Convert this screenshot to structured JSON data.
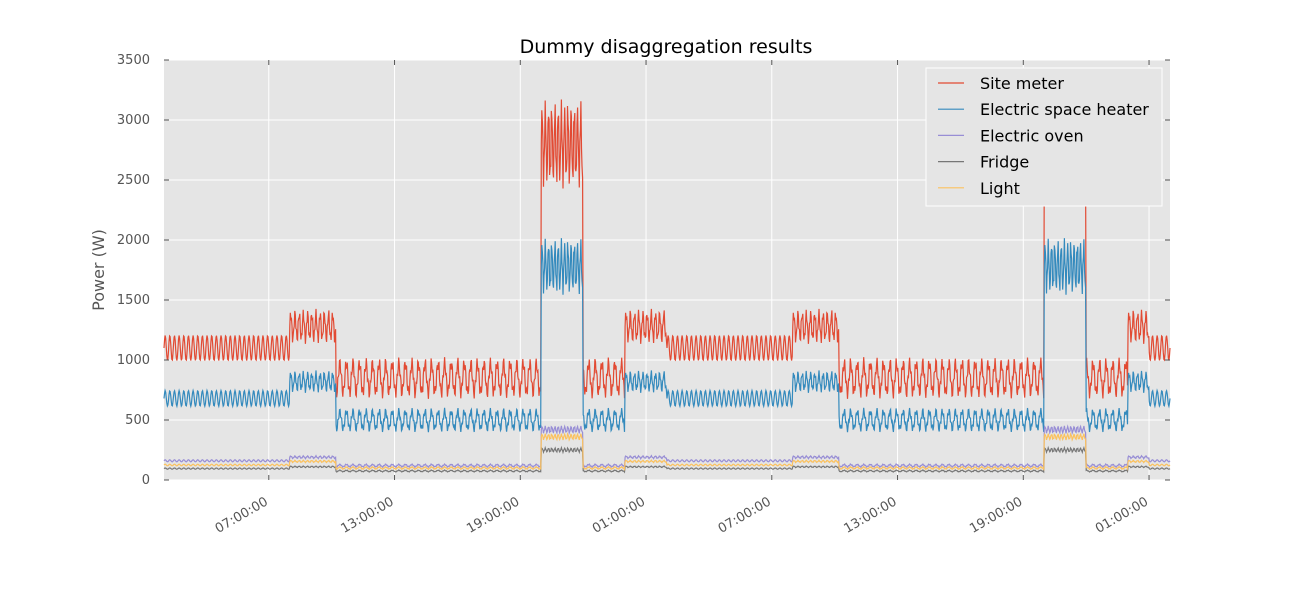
{
  "chart_data": {
    "type": "line",
    "title": "Dummy disaggregation results",
    "xlabel": "",
    "ylabel": "Power (W)",
    "ylim": [
      0,
      3500
    ],
    "yticks": [
      0,
      500,
      1000,
      1500,
      2000,
      2500,
      3000,
      3500
    ],
    "xlim_hours": [
      2,
      50
    ],
    "x_ticks": [
      {
        "hour": 7,
        "label": "07:00:00"
      },
      {
        "hour": 13,
        "label": "13:00:00"
      },
      {
        "hour": 19,
        "label": "19:00:00"
      },
      {
        "hour": 25,
        "label": "01:00:00"
      },
      {
        "hour": 31,
        "label": "07:00:00"
      },
      {
        "hour": 37,
        "label": "13:00:00"
      },
      {
        "hour": 43,
        "label": "19:00:00"
      },
      {
        "hour": 49,
        "label": "01:00:00"
      }
    ],
    "grid": true,
    "legend_position": "top-right",
    "background": "#e5e5e5",
    "segments": [
      {
        "start": 2.0,
        "end": 8.0,
        "site": 1100,
        "heater": 680,
        "oven": 160,
        "fridge": 95,
        "light": 125
      },
      {
        "start": 8.0,
        "end": 10.2,
        "site": 1280,
        "heater": 820,
        "oven": 190,
        "fridge": 110,
        "light": 155
      },
      {
        "start": 10.2,
        "end": 20.0,
        "site": 850,
        "heater": 500,
        "oven": 120,
        "fridge": 75,
        "light": 100
      },
      {
        "start": 20.0,
        "end": 22.0,
        "site": 2800,
        "heater": 1780,
        "oven": 420,
        "fridge": 250,
        "light": 360
      },
      {
        "start": 22.0,
        "end": 24.0,
        "site": 850,
        "heater": 500,
        "oven": 120,
        "fridge": 75,
        "light": 100
      },
      {
        "start": 24.0,
        "end": 26.0,
        "site": 1280,
        "heater": 820,
        "oven": 190,
        "fridge": 110,
        "light": 155
      },
      {
        "start": 26.0,
        "end": 32.0,
        "site": 1100,
        "heater": 680,
        "oven": 160,
        "fridge": 95,
        "light": 125
      },
      {
        "start": 32.0,
        "end": 34.2,
        "site": 1280,
        "heater": 820,
        "oven": 190,
        "fridge": 110,
        "light": 155
      },
      {
        "start": 34.2,
        "end": 44.0,
        "site": 850,
        "heater": 500,
        "oven": 120,
        "fridge": 75,
        "light": 100
      },
      {
        "start": 44.0,
        "end": 46.0,
        "site": 2800,
        "heater": 1780,
        "oven": 420,
        "fridge": 250,
        "light": 360
      },
      {
        "start": 46.0,
        "end": 48.0,
        "site": 850,
        "heater": 500,
        "oven": 120,
        "fridge": 75,
        "light": 100
      },
      {
        "start": 48.0,
        "end": 49.0,
        "site": 1280,
        "heater": 820,
        "oven": 190,
        "fridge": 110,
        "light": 155
      },
      {
        "start": 49.0,
        "end": 50.0,
        "site": 1100,
        "heater": 680,
        "oven": 160,
        "fridge": 95,
        "light": 125
      }
    ],
    "series": [
      {
        "key": "site",
        "name": "Site meter",
        "color": "#e24a33"
      },
      {
        "key": "heater",
        "name": "Electric space heater",
        "color": "#348abd"
      },
      {
        "key": "oven",
        "name": "Electric oven",
        "color": "#988ed5"
      },
      {
        "key": "fridge",
        "name": "Fridge",
        "color": "#777777"
      },
      {
        "key": "light",
        "name": "Light",
        "color": "#fbc15e"
      }
    ]
  }
}
